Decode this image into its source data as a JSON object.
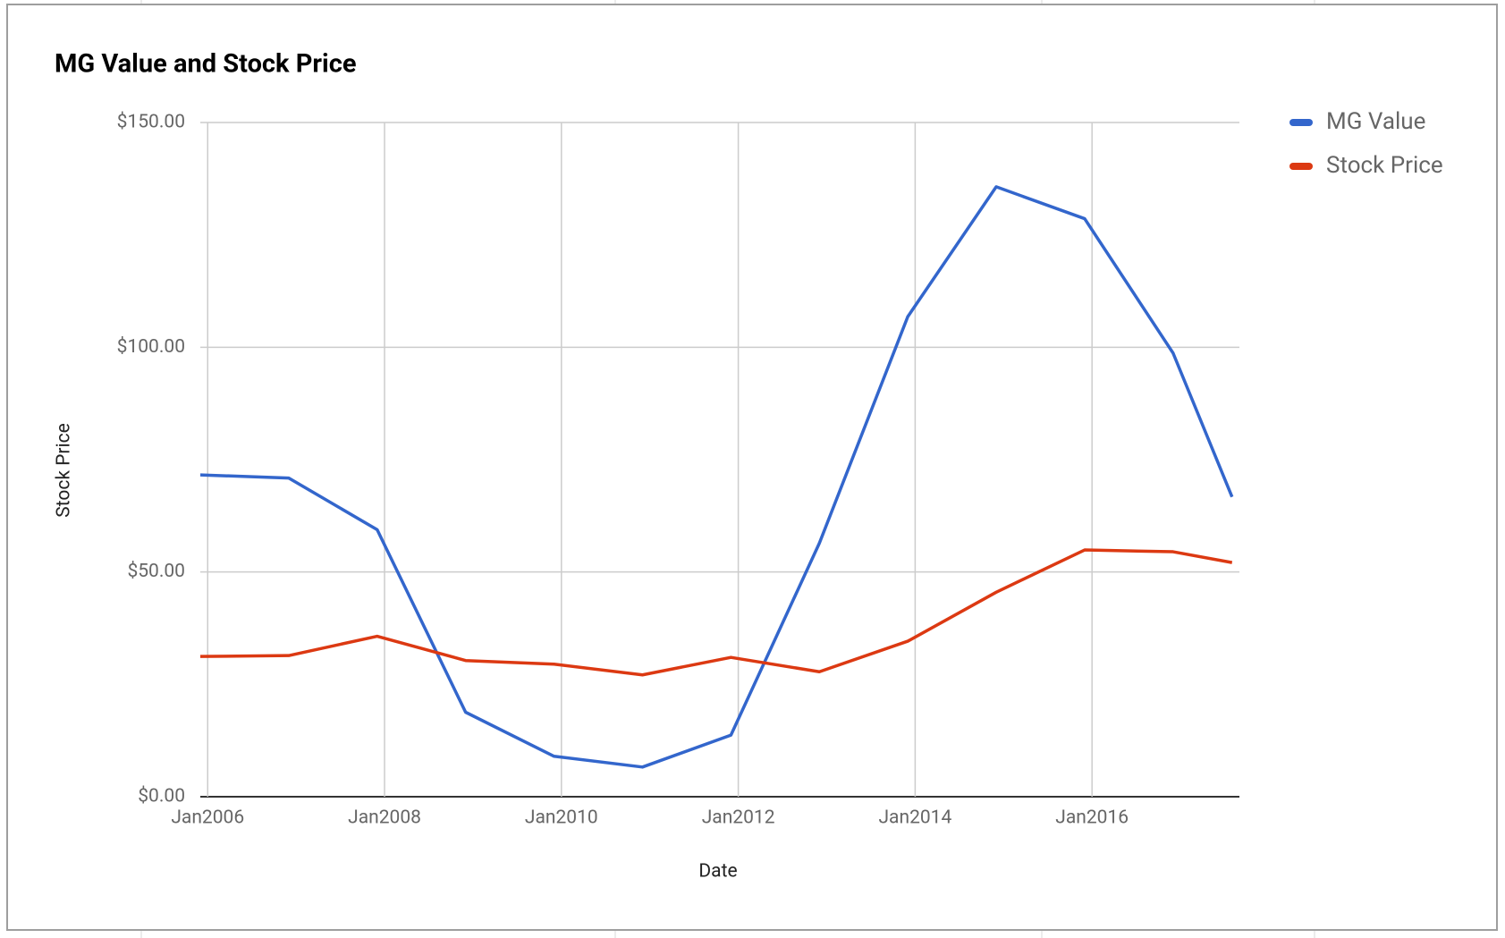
{
  "chart_data": {
    "type": "line",
    "title": "MG Value and Stock Price",
    "x_label": "Date",
    "y_label": "Stock Price",
    "x": [
      "2005-12",
      "2006-12",
      "2007-12",
      "2008-12",
      "2009-12",
      "2010-12",
      "2011-12",
      "2012-12",
      "2013-12",
      "2014-12",
      "2015-12",
      "2016-12",
      "2017-08"
    ],
    "series": [
      {
        "name": "MG Value",
        "color": "#3366cc",
        "values": [
          71.6,
          70.9,
          59.4,
          18.8,
          9.0,
          6.6,
          13.7,
          56.4,
          106.8,
          135.7,
          128.6,
          98.7,
          66.7
        ]
      },
      {
        "name": "Stock Price",
        "color": "#dc3912",
        "values": [
          31.2,
          31.4,
          35.7,
          30.3,
          29.5,
          27.1,
          31.0,
          27.8,
          34.6,
          45.5,
          54.9,
          54.5,
          52.1
        ]
      }
    ],
    "xlim": [
      "2005-12",
      "2017-09"
    ],
    "xticks": [
      {
        "value": "2006-01",
        "label": "Jan2006"
      },
      {
        "value": "2008-01",
        "label": "Jan2008"
      },
      {
        "value": "2010-01",
        "label": "Jan2010"
      },
      {
        "value": "2012-01",
        "label": "Jan2012"
      },
      {
        "value": "2014-01",
        "label": "Jan2014"
      },
      {
        "value": "2016-01",
        "label": "Jan2016"
      }
    ],
    "ylim": [
      0,
      150
    ],
    "yticks": [
      {
        "value": 0,
        "label": "$0.00"
      },
      {
        "value": 50,
        "label": "$50.00"
      },
      {
        "value": 100,
        "label": "$100.00"
      },
      {
        "value": 150,
        "label": "$150.00"
      }
    ],
    "grid": true,
    "legend": "right"
  }
}
